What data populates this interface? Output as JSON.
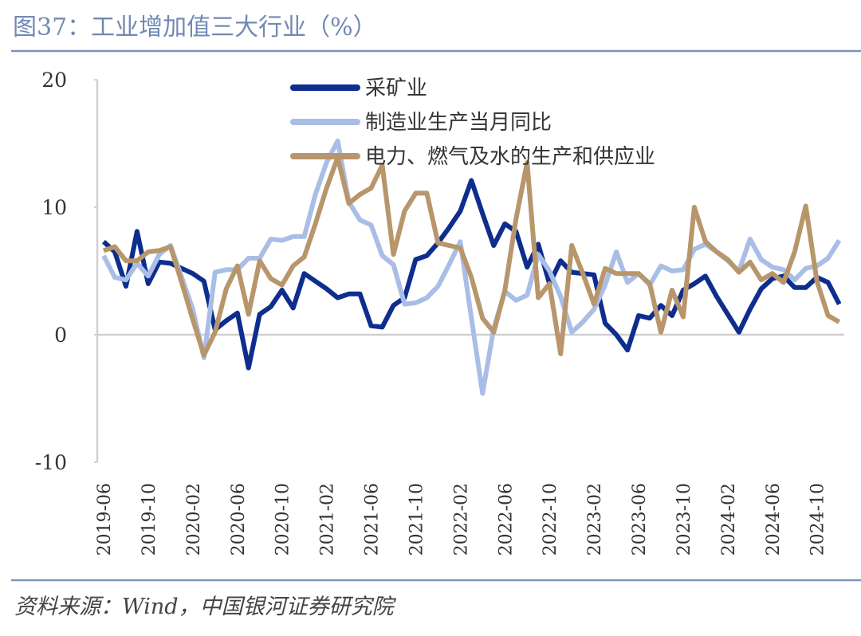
{
  "chart_data": {
    "type": "line",
    "title": "图37：工业增加值三大行业（%）",
    "source": "资料来源：Wind，中国银河证券研究院",
    "categories": [
      "2019-06",
      null,
      null,
      null,
      "2019-10",
      null,
      null,
      null,
      "2020-02",
      null,
      null,
      null,
      "2020-06",
      null,
      null,
      null,
      "2020-10",
      null,
      null,
      null,
      "2021-02",
      null,
      null,
      null,
      "2021-06",
      null,
      null,
      null,
      "2021-10",
      null,
      null,
      null,
      "2022-02",
      null,
      null,
      null,
      "2022-06",
      null,
      null,
      null,
      "2022-10",
      null,
      null,
      null,
      "2023-02",
      null,
      null,
      null,
      "2023-06",
      null,
      null,
      null,
      "2023-10",
      null,
      null,
      null,
      "2024-02",
      null,
      null,
      null,
      "2024-06",
      null,
      null,
      null,
      "2024-10",
      null,
      null
    ],
    "ylim": [
      -10,
      20
    ],
    "yticks": [
      -10,
      0,
      10,
      20
    ],
    "grid": false,
    "legend": "top",
    "series": [
      {
        "name": "采矿业",
        "color": "#0e2d8e",
        "values": [
          7.3,
          6.5,
          3.8,
          8.1,
          4.0,
          5.7,
          5.6,
          5.2,
          4.8,
          4.2,
          0.4,
          1.1,
          1.7,
          -2.6,
          1.6,
          2.2,
          3.5,
          2.1,
          4.8,
          4.2,
          3.6,
          2.9,
          3.2,
          3.2,
          0.7,
          0.6,
          2.3,
          2.9,
          5.9,
          6.2,
          7.2,
          8.4,
          9.7,
          12.1,
          9.5,
          7.0,
          8.7,
          8.1,
          5.3,
          7.1,
          4.0,
          5.8,
          4.9,
          4.8,
          4.7,
          0.9,
          0.0,
          -1.2,
          1.5,
          1.3,
          2.3,
          1.5,
          3.5,
          4.0,
          4.6,
          3.0,
          1.6,
          0.2,
          2.0,
          3.6,
          4.4,
          4.6,
          3.7,
          3.7,
          4.5,
          4.1,
          2.4
        ]
      },
      {
        "name": "制造业生产当月同比",
        "color": "#a9bee6",
        "values": [
          6.2,
          4.5,
          4.3,
          5.6,
          4.6,
          6.3,
          7.0,
          4.5,
          2.0,
          -1.8,
          4.9,
          5.1,
          5.1,
          6.0,
          6.0,
          7.5,
          7.4,
          7.7,
          7.7,
          11.0,
          13.5,
          15.2,
          10.4,
          9.0,
          8.6,
          6.2,
          5.5,
          2.4,
          2.5,
          2.9,
          3.8,
          5.5,
          7.3,
          1.3,
          -4.6,
          0.5,
          3.4,
          2.7,
          3.1,
          6.3,
          5.0,
          3.0,
          0.2,
          1.0,
          2.0,
          3.9,
          6.5,
          4.1,
          4.8,
          3.9,
          5.4,
          5.0,
          5.1,
          6.7,
          7.1,
          6.5,
          5.8,
          5.0,
          7.5,
          5.9,
          5.3,
          5.1,
          4.3,
          5.2,
          5.4,
          6.0,
          7.4
        ]
      },
      {
        "name": "电力、燃气及水的生产和供应业",
        "color": "#b8966b",
        "values": [
          6.6,
          6.9,
          5.8,
          5.8,
          6.5,
          6.6,
          6.9,
          4.1,
          1.2,
          -1.6,
          0.2,
          3.6,
          5.4,
          1.6,
          5.8,
          4.4,
          3.9,
          5.4,
          6.1,
          8.7,
          11.5,
          13.9,
          10.3,
          11.0,
          11.5,
          13.3,
          6.3,
          9.7,
          11.1,
          11.1,
          7.2,
          7.0,
          6.8,
          4.5,
          1.3,
          0.2,
          3.5,
          9.1,
          13.5,
          2.9,
          4.0,
          -1.5,
          7.0,
          4.8,
          2.4,
          5.2,
          4.8,
          4.8,
          4.8,
          4.0,
          0.2,
          3.5,
          1.4,
          10.0,
          7.3,
          6.5,
          5.9,
          4.9,
          5.7,
          4.3,
          4.8,
          4.1,
          6.5,
          10.1,
          4.2,
          1.5,
          1.0
        ]
      }
    ]
  }
}
